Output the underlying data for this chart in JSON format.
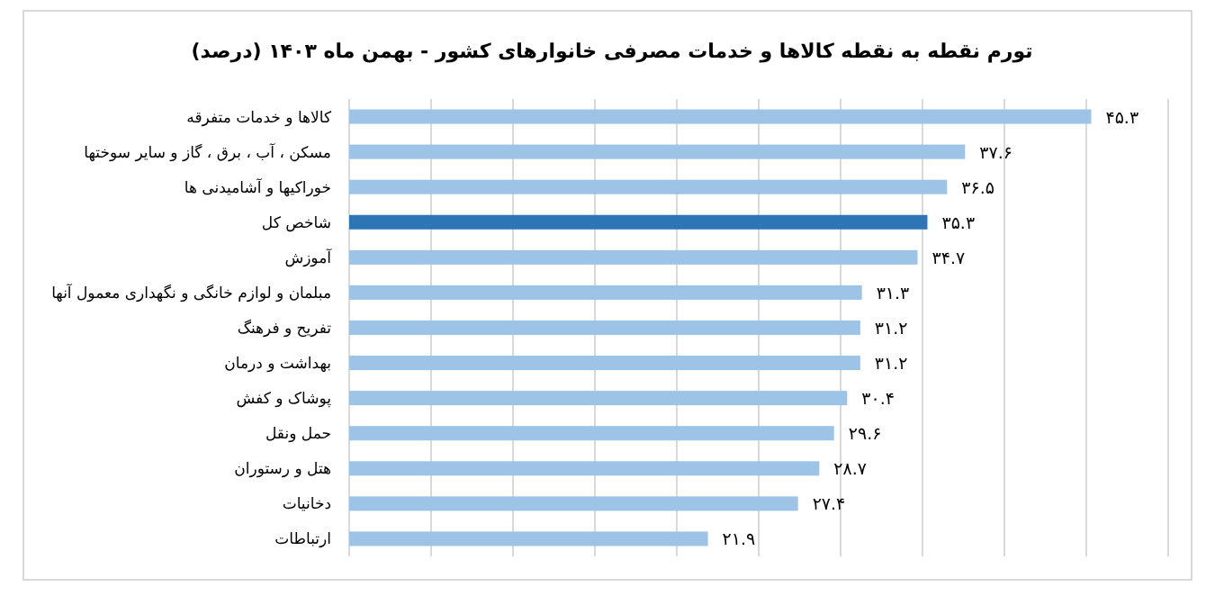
{
  "chart_data": {
    "type": "bar",
    "orientation": "horizontal",
    "title": "تورم نقطه به نقطه کالاها و خدمات مصرفی خانوارهای کشور - بهمن ماه ۱۴۰۳ (درصد)",
    "categories": [
      "کالاها و خدمات متفرقه",
      "مسکن ، آب ، برق ، گاز و سایر سوختها",
      "خوراکیها و آشامیدنی ها",
      "شاخص کل",
      "آموزش",
      "مبلمان و لوازم خانگی و نگهداری معمول آنها",
      "تفریح و فرهنگ",
      "بهداشت و درمان",
      "پوشاک و کفش",
      "حمل ونقل",
      "هتل و رستوران",
      "دخانیات",
      "ارتباطات"
    ],
    "values": [
      45.3,
      37.6,
      36.5,
      35.3,
      34.7,
      31.3,
      31.2,
      31.2,
      30.4,
      29.6,
      28.7,
      27.4,
      21.9
    ],
    "value_labels": [
      "۴۵.۳",
      "۳۷.۶",
      "۳۶.۵",
      "۳۵.۳",
      "۳۴.۷",
      "۳۱.۳",
      "۳۱.۲",
      "۳۱.۲",
      "۳۰.۴",
      "۲۹.۶",
      "۲۸.۷",
      "۲۷.۴",
      "۲۱.۹"
    ],
    "colors": [
      "#9dc3e6",
      "#9dc3e6",
      "#9dc3e6",
      "#2e75b6",
      "#9dc3e6",
      "#9dc3e6",
      "#9dc3e6",
      "#9dc3e6",
      "#9dc3e6",
      "#9dc3e6",
      "#9dc3e6",
      "#9dc3e6",
      "#9dc3e6"
    ],
    "xlim": [
      0,
      50
    ],
    "xticks": [
      {
        "value": 0,
        "label": null
      },
      {
        "value": 5,
        "label": null
      },
      {
        "value": 10,
        "label": null
      },
      {
        "value": 15,
        "label": null
      },
      {
        "value": 20,
        "label": null
      },
      {
        "value": 25,
        "label": null
      },
      {
        "value": 30,
        "label": null
      },
      {
        "value": 35,
        "label": null
      },
      {
        "value": 40,
        "label": null
      },
      {
        "value": 45,
        "label": null
      },
      {
        "value": 50,
        "label": null
      }
    ],
    "grid": "x"
  }
}
